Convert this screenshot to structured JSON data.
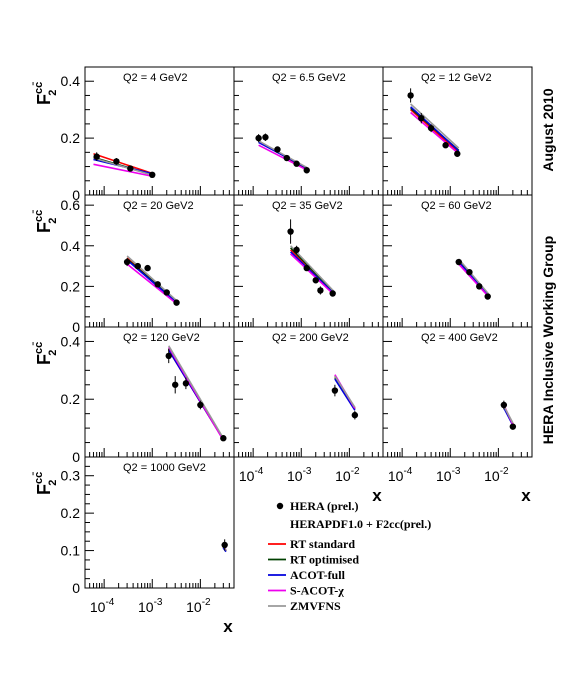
{
  "side_label_top": "August 2010",
  "side_label_bottom": "HERA Inclusive Working Group",
  "ylabel_main": "F",
  "ylabel_sub": "2",
  "ylabel_sup": "cc̄",
  "xlabel": "x",
  "x_tick_labels": [
    "10-4",
    "10-3",
    "10-2"
  ],
  "legend": {
    "data_label": "HERA (prel.)",
    "fit_header": "HERAPDF1.0 + F2cc(prel.)",
    "items": [
      {
        "label": "RT standard",
        "color": "#ff0000"
      },
      {
        "label": "RT optimised",
        "color": "#004000"
      },
      {
        "label": "ACOT-full",
        "color": "#0000dd"
      },
      {
        "label": "S-ACOT-χ",
        "color": "#ee00ee"
      },
      {
        "label": "ZMVFNS",
        "color": "#999999"
      }
    ]
  },
  "chart_data": [
    {
      "type": "scatter",
      "title": "Q2 = 4 GeV2",
      "q2": "4",
      "ylim": [
        0,
        0.45
      ],
      "yticks": [
        0,
        0.2,
        0.4
      ],
      "xlog": true,
      "points": [
        [
          7e-05,
          0.135,
          0.015
        ],
        [
          0.00018,
          0.118,
          0.012
        ],
        [
          0.00035,
          0.093,
          0.008
        ],
        [
          0.001,
          0.071,
          0.006
        ]
      ],
      "series": [
        {
          "name": "RT standard",
          "x": [
            6e-05,
            0.001
          ],
          "y": [
            0.145,
            0.076
          ]
        },
        {
          "name": "RT optimised",
          "x": [
            6e-05,
            0.001
          ],
          "y": [
            0.132,
            0.072
          ]
        },
        {
          "name": "ACOT-full",
          "x": [
            6e-05,
            0.001
          ],
          "y": [
            0.125,
            0.075
          ]
        },
        {
          "name": "S-ACOT-χ",
          "x": [
            6e-05,
            0.001
          ],
          "y": [
            0.108,
            0.066
          ]
        },
        {
          "name": "ZMVFNS",
          "x": [
            6e-05,
            0.001
          ],
          "y": [
            0.13,
            0.07
          ]
        }
      ]
    },
    {
      "type": "scatter",
      "title": "Q2 = 6.5 GeV2",
      "q2": "6.5",
      "ylim": [
        0,
        0.45
      ],
      "yticks": [
        0,
        0.2,
        0.4
      ],
      "xlog": true,
      "points": [
        [
          0.00013,
          0.2,
          0.014
        ],
        [
          0.00018,
          0.203,
          0.013
        ],
        [
          0.00032,
          0.16,
          0.01
        ],
        [
          0.0005,
          0.13,
          0.009
        ],
        [
          0.0008,
          0.11,
          0.008
        ],
        [
          0.0013,
          0.087,
          0.007
        ]
      ],
      "series": [
        {
          "name": "RT standard",
          "x": [
            0.00013,
            0.0013
          ],
          "y": [
            0.19,
            0.09
          ]
        },
        {
          "name": "RT optimised",
          "x": [
            0.00013,
            0.0013
          ],
          "y": [
            0.187,
            0.094
          ]
        },
        {
          "name": "ACOT-full",
          "x": [
            0.00013,
            0.0013
          ],
          "y": [
            0.185,
            0.095
          ]
        },
        {
          "name": "S-ACOT-χ",
          "x": [
            0.00013,
            0.0013
          ],
          "y": [
            0.175,
            0.088
          ]
        },
        {
          "name": "ZMVFNS",
          "x": [
            0.00013,
            0.0013
          ],
          "y": [
            0.19,
            0.097
          ]
        }
      ]
    },
    {
      "type": "scatter",
      "title": "Q2 = 12 GeV2",
      "q2": "12",
      "ylim": [
        0,
        0.45
      ],
      "yticks": [
        0,
        0.2,
        0.4
      ],
      "xlog": true,
      "points": [
        [
          0.00015,
          0.35,
          0.025
        ],
        [
          0.00025,
          0.27,
          0.018
        ],
        [
          0.0004,
          0.235,
          0.014
        ],
        [
          0.0008,
          0.175,
          0.01
        ],
        [
          0.0014,
          0.145,
          0.009
        ]
      ],
      "series": [
        {
          "name": "RT standard",
          "x": [
            0.00015,
            0.0015
          ],
          "y": [
            0.3,
            0.15
          ]
        },
        {
          "name": "RT optimised",
          "x": [
            0.00015,
            0.0015
          ],
          "y": [
            0.305,
            0.157
          ]
        },
        {
          "name": "ACOT-full",
          "x": [
            0.00015,
            0.0015
          ],
          "y": [
            0.31,
            0.155
          ]
        },
        {
          "name": "S-ACOT-χ",
          "x": [
            0.00015,
            0.0015
          ],
          "y": [
            0.29,
            0.145
          ]
        },
        {
          "name": "ZMVFNS",
          "x": [
            0.00015,
            0.0015
          ],
          "y": [
            0.32,
            0.165
          ]
        }
      ]
    },
    {
      "type": "scatter",
      "title": "Q2 = 20 GeV2",
      "q2": "20",
      "ylim": [
        0,
        0.65
      ],
      "yticks": [
        0,
        0.2,
        0.4,
        0.6
      ],
      "xlog": true,
      "points": [
        [
          0.0003,
          0.32,
          0.02
        ],
        [
          0.0005,
          0.3,
          0.015
        ],
        [
          0.0008,
          0.29,
          0.012
        ],
        [
          0.0013,
          0.21,
          0.01
        ],
        [
          0.002,
          0.17,
          0.008
        ],
        [
          0.0032,
          0.12,
          0.007
        ]
      ],
      "series": [
        {
          "name": "RT standard",
          "x": [
            0.0003,
            0.0032
          ],
          "y": [
            0.34,
            0.12
          ]
        },
        {
          "name": "RT optimised",
          "x": [
            0.0003,
            0.0032
          ],
          "y": [
            0.335,
            0.125
          ]
        },
        {
          "name": "ACOT-full",
          "x": [
            0.0003,
            0.0032
          ],
          "y": [
            0.33,
            0.12
          ]
        },
        {
          "name": "S-ACOT-χ",
          "x": [
            0.0003,
            0.0032
          ],
          "y": [
            0.31,
            0.115
          ]
        },
        {
          "name": "ZMVFNS",
          "x": [
            0.0003,
            0.0032
          ],
          "y": [
            0.35,
            0.13
          ]
        }
      ]
    },
    {
      "type": "scatter",
      "title": "Q2 = 35 GeV2",
      "q2": "35",
      "ylim": [
        0,
        0.65
      ],
      "yticks": [
        0,
        0.2,
        0.4,
        0.6
      ],
      "xlog": true,
      "points": [
        [
          0.0006,
          0.47,
          0.06
        ],
        [
          0.0008,
          0.38,
          0.02
        ],
        [
          0.0013,
          0.29,
          0.014
        ],
        [
          0.002,
          0.23,
          0.011
        ],
        [
          0.0025,
          0.18,
          0.02
        ],
        [
          0.0045,
          0.165,
          0.008
        ]
      ],
      "series": [
        {
          "name": "RT standard",
          "x": [
            0.0006,
            0.005
          ],
          "y": [
            0.38,
            0.16
          ]
        },
        {
          "name": "RT optimised",
          "x": [
            0.0006,
            0.005
          ],
          "y": [
            0.39,
            0.165
          ]
        },
        {
          "name": "ACOT-full",
          "x": [
            0.0006,
            0.005
          ],
          "y": [
            0.37,
            0.16
          ]
        },
        {
          "name": "S-ACOT-χ",
          "x": [
            0.0006,
            0.005
          ],
          "y": [
            0.36,
            0.155
          ]
        },
        {
          "name": "ZMVFNS",
          "x": [
            0.0006,
            0.005
          ],
          "y": [
            0.4,
            0.17
          ]
        }
      ]
    },
    {
      "type": "scatter",
      "title": "Q2 = 60 GeV2",
      "q2": "60",
      "ylim": [
        0,
        0.65
      ],
      "yticks": [
        0,
        0.2,
        0.4,
        0.6
      ],
      "xlog": true,
      "points": [
        [
          0.0015,
          0.32,
          0.015
        ],
        [
          0.0025,
          0.27,
          0.012
        ],
        [
          0.004,
          0.2,
          0.01
        ],
        [
          0.006,
          0.15,
          0.008
        ]
      ],
      "series": [
        {
          "name": "RT standard",
          "x": [
            0.0015,
            0.0065
          ],
          "y": [
            0.33,
            0.15
          ]
        },
        {
          "name": "RT optimised",
          "x": [
            0.0015,
            0.0065
          ],
          "y": [
            0.325,
            0.152
          ]
        },
        {
          "name": "ACOT-full",
          "x": [
            0.0015,
            0.0065
          ],
          "y": [
            0.32,
            0.15
          ]
        },
        {
          "name": "S-ACOT-χ",
          "x": [
            0.0015,
            0.0065
          ],
          "y": [
            0.31,
            0.145
          ]
        },
        {
          "name": "ZMVFNS",
          "x": [
            0.0015,
            0.0065
          ],
          "y": [
            0.335,
            0.158
          ]
        }
      ]
    },
    {
      "type": "scatter",
      "title": "Q2 = 120 GeV2",
      "q2": "120",
      "ylim": [
        0,
        0.45
      ],
      "yticks": [
        0,
        0.2,
        0.4
      ],
      "xlog": true,
      "points": [
        [
          0.0022,
          0.35,
          0.025
        ],
        [
          0.003,
          0.25,
          0.03
        ],
        [
          0.005,
          0.255,
          0.02
        ],
        [
          0.01,
          0.18,
          0.015
        ],
        [
          0.03,
          0.065,
          0.008
        ]
      ],
      "series": [
        {
          "name": "RT standard",
          "x": [
            0.0022,
            0.03
          ],
          "y": [
            0.37,
            0.06
          ]
        },
        {
          "name": "RT optimised",
          "x": [
            0.0022,
            0.03
          ],
          "y": [
            0.375,
            0.063
          ]
        },
        {
          "name": "ACOT-full",
          "x": [
            0.0022,
            0.03
          ],
          "y": [
            0.37,
            0.06
          ]
        },
        {
          "name": "S-ACOT-χ",
          "x": [
            0.0022,
            0.03
          ],
          "y": [
            0.38,
            0.058
          ]
        },
        {
          "name": "ZMVFNS",
          "x": [
            0.0022,
            0.03
          ],
          "y": [
            0.385,
            0.065
          ]
        }
      ]
    },
    {
      "type": "scatter",
      "title": "Q2 = 200 GeV2",
      "q2": "200",
      "ylim": [
        0,
        0.45
      ],
      "yticks": [
        0,
        0.2,
        0.4
      ],
      "xlog": true,
      "points": [
        [
          0.005,
          0.23,
          0.02
        ],
        [
          0.013,
          0.145,
          0.015
        ]
      ],
      "series": [
        {
          "name": "RT standard",
          "x": [
            0.005,
            0.013
          ],
          "y": [
            0.28,
            0.17
          ]
        },
        {
          "name": "RT optimised",
          "x": [
            0.005,
            0.013
          ],
          "y": [
            0.275,
            0.165
          ]
        },
        {
          "name": "ACOT-full",
          "x": [
            0.005,
            0.013
          ],
          "y": [
            0.27,
            0.162
          ]
        },
        {
          "name": "S-ACOT-χ",
          "x": [
            0.005,
            0.013
          ],
          "y": [
            0.285,
            0.168
          ]
        },
        {
          "name": "ZMVFNS",
          "x": [
            0.005,
            0.013
          ],
          "y": [
            0.28,
            0.172
          ]
        }
      ]
    },
    {
      "type": "scatter",
      "title": "Q2 = 400 GeV2",
      "q2": "400",
      "ylim": [
        0,
        0.45
      ],
      "yticks": [
        0,
        0.2,
        0.4
      ],
      "xlog": true,
      "points": [
        [
          0.013,
          0.18,
          0.015
        ],
        [
          0.02,
          0.105,
          0.01
        ]
      ],
      "series": [
        {
          "name": "RT standard",
          "x": [
            0.013,
            0.02
          ],
          "y": [
            0.175,
            0.115
          ]
        },
        {
          "name": "RT optimised",
          "x": [
            0.013,
            0.02
          ],
          "y": [
            0.172,
            0.112
          ]
        },
        {
          "name": "ACOT-full",
          "x": [
            0.013,
            0.02
          ],
          "y": [
            0.17,
            0.11
          ]
        },
        {
          "name": "S-ACOT-χ",
          "x": [
            0.013,
            0.02
          ],
          "y": [
            0.18,
            0.112
          ]
        },
        {
          "name": "ZMVFNS",
          "x": [
            0.013,
            0.02
          ],
          "y": [
            0.176,
            0.118
          ]
        }
      ]
    },
    {
      "type": "scatter",
      "title": "Q2 = 1000 GeV2",
      "q2": "1000",
      "ylim": [
        0,
        0.35
      ],
      "yticks": [
        0,
        0.1,
        0.2,
        0.3
      ],
      "xlog": true,
      "points": [
        [
          0.032,
          0.115,
          0.015
        ]
      ],
      "series": [
        {
          "name": "RT standard",
          "x": [
            0.03,
            0.034
          ],
          "y": [
            0.11,
            0.1
          ]
        },
        {
          "name": "RT optimised",
          "x": [
            0.03,
            0.034
          ],
          "y": [
            0.108,
            0.098
          ]
        },
        {
          "name": "ACOT-full",
          "x": [
            0.03,
            0.034
          ],
          "y": [
            0.107,
            0.097
          ]
        },
        {
          "name": "S-ACOT-χ",
          "x": [
            0.03,
            0.034
          ],
          "y": [
            0.113,
            0.102
          ]
        },
        {
          "name": "ZMVFNS",
          "x": [
            0.03,
            0.034
          ],
          "y": [
            0.112,
            0.101
          ]
        }
      ]
    }
  ]
}
